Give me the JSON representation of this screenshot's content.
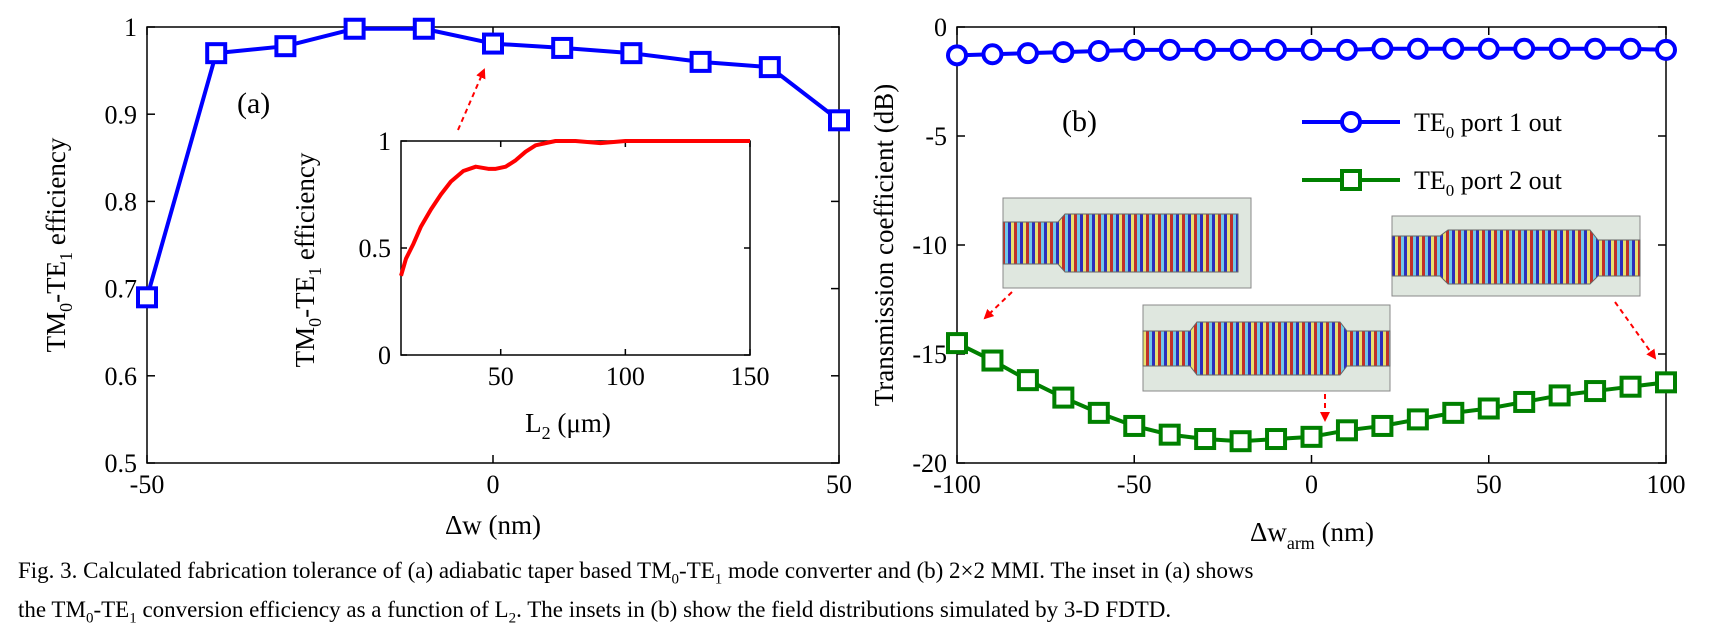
{
  "chart_data": [
    {
      "type": "line",
      "panel_label": "(a)",
      "x": [
        -50,
        -40,
        -30,
        -20,
        -10,
        0,
        10,
        20,
        30,
        40,
        50
      ],
      "series": [
        {
          "values": [
            0.69,
            0.97,
            0.978,
            0.998,
            0.998,
            0.981,
            0.976,
            0.97,
            0.96,
            0.954,
            0.893
          ],
          "color": "#0000ff",
          "marker": "square"
        }
      ],
      "xlabel": "Δw (nm)",
      "ylabel": "TM0-TE1 efficiency",
      "xlim": [
        -50,
        50
      ],
      "ylim": [
        0.5,
        1
      ],
      "xticks": [
        "-50",
        "0",
        "50"
      ],
      "yticks": [
        "0.5",
        "0.6",
        "0.7",
        "0.8",
        "0.9",
        "1"
      ],
      "inset": {
        "type": "line",
        "x": [
          10,
          12,
          15,
          18,
          22,
          26,
          30,
          35,
          40,
          45,
          48,
          52,
          56,
          60,
          64,
          68,
          72,
          80,
          90,
          100,
          110,
          120,
          130,
          140,
          150
        ],
        "values": [
          0.37,
          0.45,
          0.52,
          0.6,
          0.68,
          0.75,
          0.81,
          0.86,
          0.88,
          0.87,
          0.87,
          0.88,
          0.91,
          0.95,
          0.98,
          0.99,
          1.0,
          1.0,
          0.99,
          1.0,
          1.0,
          1.0,
          1.0,
          1.0,
          1.0
        ],
        "color": "#ff0000",
        "xlabel": "L2 (μm)",
        "ylabel": "TM0-TE1 efficiency",
        "xlim": [
          10,
          150
        ],
        "ylim": [
          0,
          1
        ],
        "xticks": [
          "50",
          "100",
          "150"
        ],
        "yticks": [
          "0",
          "0.5",
          "1"
        ]
      }
    },
    {
      "type": "line",
      "panel_label": "(b)",
      "x": [
        -100,
        -90,
        -80,
        -70,
        -60,
        -50,
        -40,
        -30,
        -20,
        -10,
        0,
        10,
        20,
        30,
        40,
        50,
        60,
        70,
        80,
        90,
        100
      ],
      "series": [
        {
          "name": "TE0 port 1 out",
          "marker": "circle",
          "color": "#0000ff",
          "values": [
            -1.3,
            -1.25,
            -1.2,
            -1.15,
            -1.1,
            -1.05,
            -1.05,
            -1.05,
            -1.05,
            -1.05,
            -1.05,
            -1.05,
            -1.0,
            -1.0,
            -1.0,
            -1.0,
            -1.0,
            -1.0,
            -1.0,
            -1.0,
            -1.05
          ]
        },
        {
          "name": "TE0 port 2 out",
          "marker": "square",
          "color": "#008000",
          "values": [
            -14.5,
            -15.3,
            -16.2,
            -17.0,
            -17.7,
            -18.3,
            -18.7,
            -18.9,
            -19.0,
            -18.9,
            -18.8,
            -18.5,
            -18.3,
            -18.0,
            -17.7,
            -17.5,
            -17.2,
            -16.9,
            -16.7,
            -16.5,
            -16.3
          ]
        }
      ],
      "xlabel": "Δwarm (nm)",
      "ylabel": "Transmission coefficient (dB)",
      "xlim": [
        -100,
        100
      ],
      "ylim": [
        -20,
        0
      ],
      "xticks": [
        "-100",
        "-50",
        "0",
        "50",
        "100"
      ],
      "yticks": [
        "-20",
        "-15",
        "-10",
        "-5",
        "0"
      ],
      "legend": "top-right"
    }
  ],
  "labels": {
    "a_ylabel_pre": "TM",
    "a_ylabel_sub1": "0",
    "a_ylabel_mid": "-TE",
    "a_ylabel_sub2": "1",
    "a_ylabel_post": " efficiency",
    "a_xlabel": "Δw (nm)",
    "inset_xlabel_pre": "L",
    "inset_xlabel_sub": "2",
    "inset_xlabel_post": " (μm)",
    "b_ylabel": "Transmission coefficient (dB)",
    "b_xlabel_pre": "Δw",
    "b_xlabel_sub": "arm",
    "b_xlabel_post": " (nm)",
    "legend1_pre": "TE",
    "legend1_sub": "0",
    "legend1_post": " port 1 out",
    "legend2_pre": "TE",
    "legend2_sub": "0",
    "legend2_post": " port 2 out"
  },
  "caption": {
    "line1_a": "Fig. 3. Calculated fabrication tolerance of (a) adiabatic taper based TM",
    "line1_s1": "0",
    "line1_b": "-TE",
    "line1_s2": "1",
    "line1_c": " mode converter and (b) 2×2 MMI. The inset in (a) shows",
    "line2_a": "the TM",
    "line2_s1": "0",
    "line2_b": "-TE",
    "line2_s2": "1",
    "line2_c": " conversion efficiency as a function of L",
    "line2_s3": "2",
    "line2_d": ". The insets in (b) show the field distributions simulated by 3-D FDTD."
  }
}
